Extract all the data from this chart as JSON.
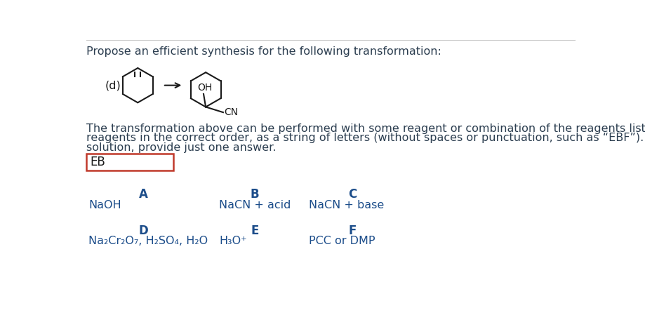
{
  "title_text": "Propose an efficient synthesis for the following transformation:",
  "title_color": "#2c3e50",
  "title_fontsize": 11.5,
  "body_text_line1": "The transformation above can be performed with some reagent or combination of the reagents listed below. Give the necessary",
  "body_text_line2": "reagents in the correct order, as a string of letters (without spaces or punctuation, such as “EBF”). If there is more than one correct",
  "body_text_line3": "solution, provide just one answer.",
  "body_fontsize": 11.5,
  "body_color": "#2c3e50",
  "answer_text": "EB",
  "answer_fontsize": 12,
  "answer_color": "#1a1a1a",
  "answer_box_color": "#c0392b",
  "reagent_label_color": "#1c4d8a",
  "reagent_label_fontsize": 12,
  "reagent_value_color": "#1c4d8a",
  "reagent_value_fontsize": 11.5,
  "background_color": "#ffffff",
  "label_d_text": "(d)",
  "label_d_fontsize": 11.5,
  "oh_label": "OH",
  "cn_label": "CN",
  "arrow_color": "#1a1a1a",
  "molecule_color": "#1a1a1a",
  "separator_color": "#cccccc",
  "col_labels_row1": [
    "A",
    "B",
    "C"
  ],
  "col_labels_row2": [
    "D",
    "E",
    "F"
  ],
  "col_values_row1": [
    "NaOH",
    "NaCN + acid",
    "NaCN + base"
  ],
  "col_values_row2_parts": [
    [
      "Na",
      "2",
      "Cr",
      "2",
      "O",
      "7",
      ", H",
      "2",
      "SO",
      "4",
      ", H",
      "2",
      "O"
    ],
    [
      "H",
      "3",
      "O",
      "+"
    ],
    [
      "PCC or DMP"
    ]
  ]
}
